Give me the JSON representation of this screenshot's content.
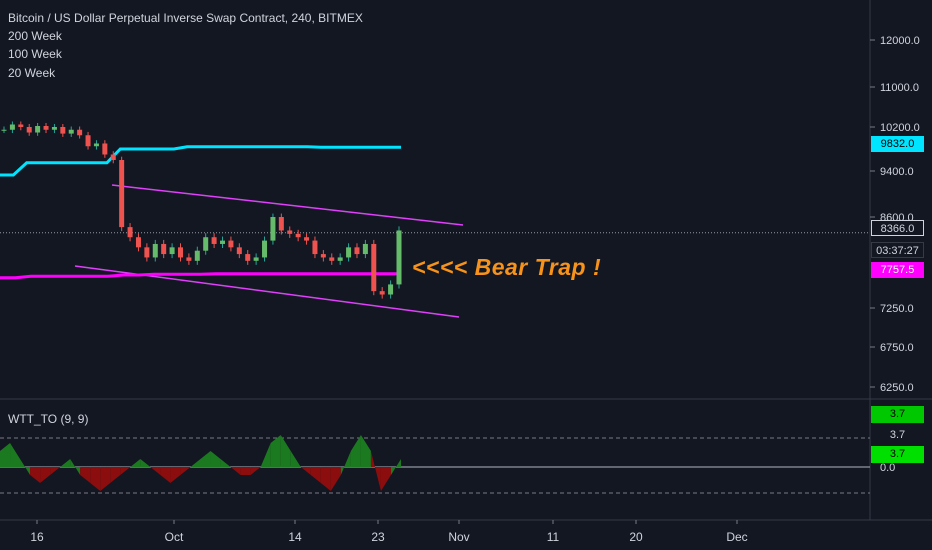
{
  "header": {
    "title": "Bitcoin / US Dollar Perpetual Inverse Swap Contract, 240, BITMEX",
    "indicators": [
      "200 Week",
      "100 Week",
      "20 Week"
    ]
  },
  "oscillator": {
    "label": "WTT_TO (9, 9)"
  },
  "annotation": "<<<< Bear Trap !",
  "price_axis": {
    "ticks": [
      "12000.0",
      "11000.0",
      "10200.0",
      "9400.0",
      "8600.0",
      "7250.0",
      "6750.0",
      "6250.0"
    ],
    "osc_tick": "0.0"
  },
  "time_axis": {
    "labels": [
      "16",
      "Oct",
      "14",
      "23",
      "Nov",
      "11",
      "20",
      "Dec"
    ]
  },
  "tags": {
    "ma200": "9832.0",
    "last_price": "8366.0",
    "countdown": "03:37:27",
    "ma100": "7757.5",
    "osc_top": "3.7",
    "osc_mid": "3.7",
    "osc_low": "3.7"
  },
  "colors": {
    "background": "#131722",
    "candle_up": "#26a69a",
    "candle_down": "#ef5350",
    "ma200": "#00e5ff",
    "ma100": "#ff00ff",
    "channel": "#e040fb",
    "osc_positive": "#1b7a1f",
    "osc_negative": "#8b0d0d",
    "annotation": "#f7931a"
  },
  "chart_data": {
    "type": "candlestick",
    "series": [
      {
        "name": "price",
        "values": [
          10150,
          10250,
          10200,
          10100,
          10220,
          10150,
          10200,
          10080,
          10150,
          10050,
          9850,
          9900,
          9700,
          9600,
          8450,
          8300,
          8150,
          8000,
          8200,
          8050,
          8150,
          8000,
          7950,
          8100,
          8300,
          8200,
          8250,
          8150,
          8050,
          7950,
          8000,
          8250,
          8600,
          8400,
          8350,
          8300,
          8250,
          8050,
          8000,
          7950,
          8000,
          8150,
          8050,
          8200,
          7500,
          7450,
          7600,
          8400
        ]
      },
      {
        "name": "200 Week",
        "values": [
          9330,
          9330,
          9550,
          9550,
          9550,
          9550,
          9550,
          9550,
          9550,
          9800,
          9800,
          9800,
          9800,
          9800,
          9840,
          9840,
          9840,
          9840,
          9840,
          9840,
          9840,
          9840,
          9840,
          9840,
          9830,
          9830,
          9830,
          9830,
          9830,
          9830,
          9832
        ]
      },
      {
        "name": "100 Week",
        "values": [
          7700,
          7700,
          7720,
          7720,
          7720,
          7720,
          7720,
          7720,
          7740,
          7740,
          7750,
          7750,
          7750,
          7750,
          7757,
          7757,
          7757,
          7757,
          7757,
          7757,
          7757,
          7757,
          7757,
          7757,
          7757,
          7757,
          7757
        ]
      },
      {
        "name": "WTT_TO (9, 9)",
        "values": [
          2,
          3,
          1,
          -1,
          -2,
          -1,
          0,
          1,
          -1,
          -2,
          -3,
          -2,
          -1,
          0,
          1,
          0,
          -1,
          -2,
          -1,
          0,
          1,
          2,
          1,
          0,
          -1,
          -1,
          0,
          3,
          4,
          2,
          0,
          -1,
          -2,
          -3,
          -1,
          2,
          4,
          2,
          -3,
          -1,
          1
        ]
      }
    ],
    "ylim": [
      6000,
      12300
    ]
  }
}
